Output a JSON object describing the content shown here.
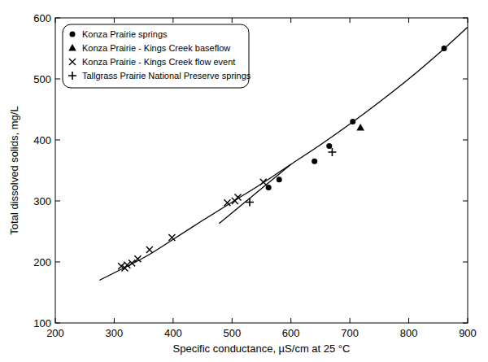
{
  "chart_data": {
    "type": "scatter",
    "x_label": "Specific conductance, µS/cm at 25 °C",
    "y_label": "Total dissolved solids, mg/L",
    "xlim": [
      200,
      900
    ],
    "ylim": [
      100,
      600
    ],
    "xticks": [
      200,
      300,
      400,
      500,
      600,
      700,
      800,
      900
    ],
    "yticks": [
      100,
      200,
      300,
      400,
      500,
      600
    ],
    "grid": false,
    "legend": "upper left",
    "series": [
      {
        "name": "Konza Prairie springs",
        "type": "scatter",
        "marker": "circle",
        "color": "#000000",
        "x": [
          860,
          705,
          665,
          640,
          580,
          562
        ],
        "values": [
          550,
          430,
          390,
          365,
          335,
          322
        ]
      },
      {
        "name": "Konza Prairie - Kings Creek baseflow",
        "type": "scatter",
        "marker": "triangle",
        "color": "#000000",
        "x": [
          718
        ],
        "values": [
          420
        ]
      },
      {
        "name": "Konza Prairie - Kings Creek flow event",
        "type": "scatter",
        "marker": "x",
        "color": "#000000",
        "x": [
          312,
          318,
          322,
          330,
          340,
          360,
          398,
          492,
          505,
          510,
          553
        ],
        "values": [
          193,
          190,
          195,
          198,
          205,
          220,
          240,
          297,
          300,
          306,
          331
        ]
      },
      {
        "name": "Tallgrass Prairie National Preserve springs",
        "type": "scatter",
        "marker": "plus",
        "color": "#000000",
        "x": [
          530,
          670
        ],
        "values": [
          298,
          380
        ]
      },
      {
        "type": "line",
        "line_style": "solid",
        "color": "#000000",
        "x": [
          275,
          350,
          400,
          450,
          500,
          550,
          600,
          650,
          700,
          750,
          800,
          850,
          900
        ],
        "values": [
          170,
          207,
          237,
          268,
          298,
          328,
          360,
          392,
          426,
          462,
          500,
          541,
          585
        ]
      },
      {
        "type": "line",
        "line_style": "solid",
        "color": "#000000",
        "x": [
          478,
          600
        ],
        "values": [
          263,
          360
        ]
      }
    ]
  }
}
